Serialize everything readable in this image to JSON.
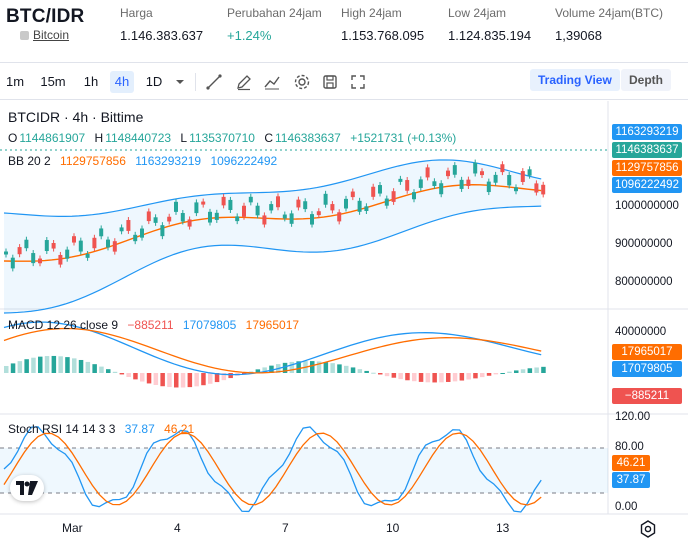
{
  "header": {
    "pair": "BTC/IDR",
    "coin_link": "Bitcoin",
    "stats": [
      {
        "label": "Harga",
        "value": "1.146.383.637",
        "tone": "neutral"
      },
      {
        "label": "Perubahan 24jam",
        "value": "+1.24%",
        "tone": "green"
      },
      {
        "label": "High 24jam",
        "value": "1.153.768.095",
        "tone": "neutral"
      },
      {
        "label": "Low 24jam",
        "value": "1.124.835.194",
        "tone": "neutral"
      },
      {
        "label": "Volume 24jam(BTC)",
        "value": "1,39068",
        "tone": "neutral"
      }
    ]
  },
  "toolbar": {
    "intervals": [
      "1m",
      "15m",
      "1h",
      "4h",
      "1D"
    ],
    "active_interval": "4h",
    "icons": [
      "chevron-down-icon",
      "line-tool-icon",
      "pencil-icon",
      "indicator-icon",
      "gear-icon",
      "save-icon",
      "fullscreen-icon"
    ],
    "trading_view": "Trading View",
    "depth": "Depth"
  },
  "colors": {
    "up": "#26a69a",
    "down": "#ef5350",
    "bb_upper": "#2196f3",
    "bb_basis": "#ff6d00",
    "macd_line": "#2196f3",
    "signal_line": "#ff6d00",
    "stoch_k": "#2196f3",
    "stoch_d": "#ff6d00"
  },
  "main_pane": {
    "title": "BTCIDR · 4h · Bittime",
    "ohlc": {
      "o_label": "O",
      "o": "1144861907",
      "h_label": "H",
      "h": "1148440723",
      "l_label": "L",
      "l": "1135370710",
      "c_label": "C",
      "c": "1146383637",
      "change": "+1521731 (+0.13%)"
    },
    "bb": {
      "label": "BB 20 2",
      "basis": "1129757856",
      "upper": "1163293219",
      "lower": "1096222492"
    },
    "price_tags": [
      "1163293219",
      "1146383637",
      "1129757856",
      "1096222492"
    ],
    "axis": [
      "1000000000",
      "900000000",
      "800000000"
    ]
  },
  "macd_pane": {
    "label": "MACD 12 26 close 9",
    "hist": "−885211",
    "macd": "17079805",
    "signal": "17965017",
    "axis": [
      "40000000"
    ],
    "tags": [
      "17965017",
      "17079805",
      "−885211"
    ]
  },
  "stoch_pane": {
    "label": "Stoch RSI 14 14 3 3",
    "k": "37.87",
    "d": "46.21",
    "axis": [
      "120.00",
      "80.00",
      "0.00"
    ],
    "tags": [
      "46.21",
      "37.87"
    ]
  },
  "x_axis": [
    "Mar",
    "4",
    "7",
    "10",
    "13"
  ],
  "chart_data": {
    "type": "candlestick",
    "title": "BTCIDR · 4h · Bittime",
    "y_ticks": [
      800000000,
      900000000,
      1000000000
    ],
    "x_ticks": [
      "Mar",
      "4",
      "7",
      "10",
      "13"
    ],
    "last": {
      "open": 1144861907,
      "high": 1148440723,
      "low": 1135370710,
      "close": 1146383637
    },
    "bollinger": {
      "upper": 1163293219,
      "basis": 1129757856,
      "lower": 1096222492
    },
    "macd": {
      "histogram": -885211,
      "macd": 17079805,
      "signal": 17965017
    },
    "stoch_rsi": {
      "k": 37.87,
      "d": 46.21,
      "bands": [
        80,
        20
      ]
    }
  }
}
